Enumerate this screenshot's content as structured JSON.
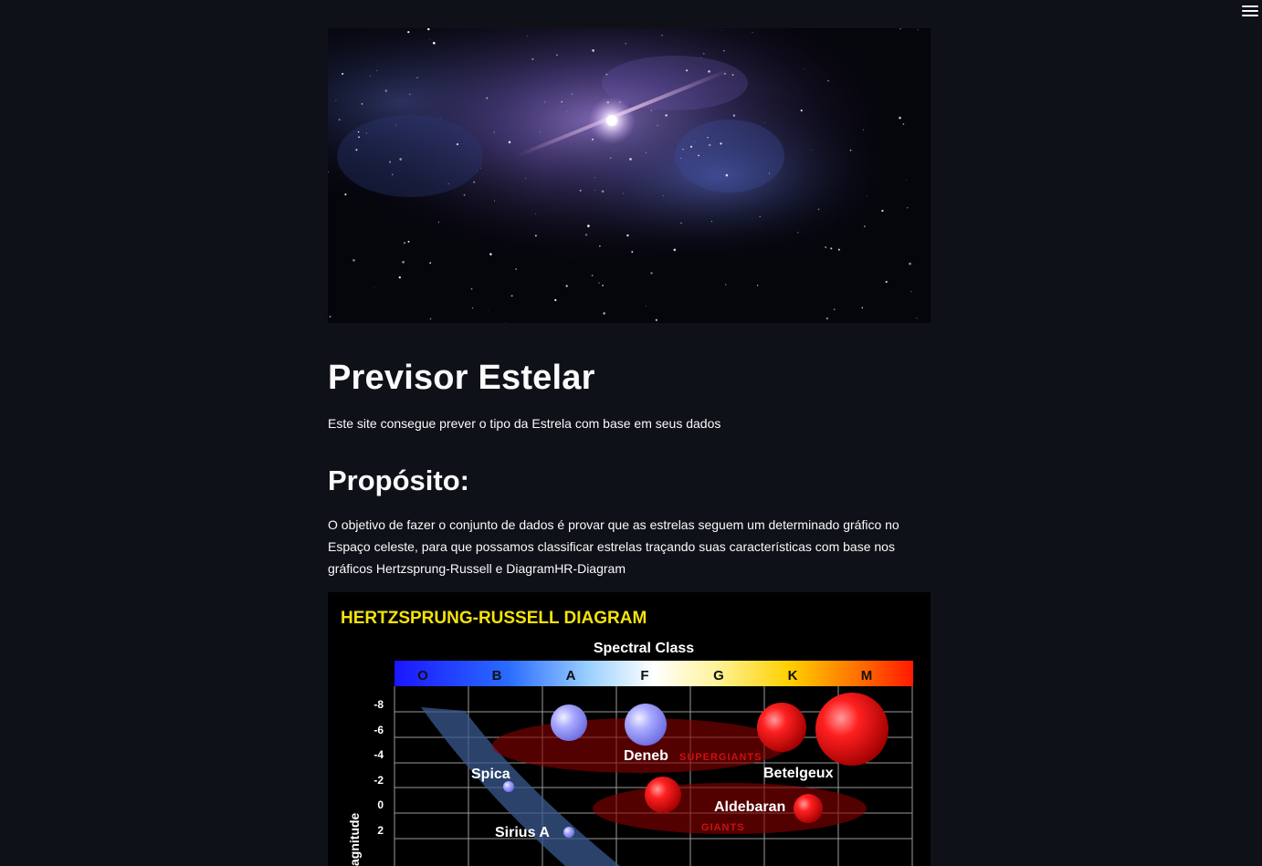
{
  "header": {
    "menu_icon": "hamburger-icon"
  },
  "main": {
    "title": "Previsor Estelar",
    "intro": "Este site consegue prever o tipo da Estrela com base em seus dados",
    "purpose_heading": "Propósito:",
    "purpose_text": "O objetivo de fazer o conjunto de dados é provar que as estrelas seguem um determinado gráfico no Espaço celeste, para que possamos classificar estrelas traçando suas características com base nos gráficos Hertzsprung-Russell e DiagramHR-Diagram"
  },
  "hr_diagram": {
    "title": "HERTZSPRUNG-RUSSELL DIAGRAM",
    "spectral_label": "Spectral Class",
    "classes": [
      "O",
      "B",
      "A",
      "F",
      "G",
      "K",
      "M"
    ],
    "magnitude_ticks": [
      "-8",
      "-6",
      "-4",
      "-2",
      "0",
      "2"
    ],
    "axis_label": "agnitude",
    "stars": [
      "Deneb",
      "Spica",
      "Betelgeux",
      "Aldebaran",
      "Sirius A"
    ],
    "regions": [
      "SUPERGIANTS",
      "GIANTS"
    ],
    "colors": {
      "title": "#f4e20a",
      "region": "#cc1111"
    }
  }
}
